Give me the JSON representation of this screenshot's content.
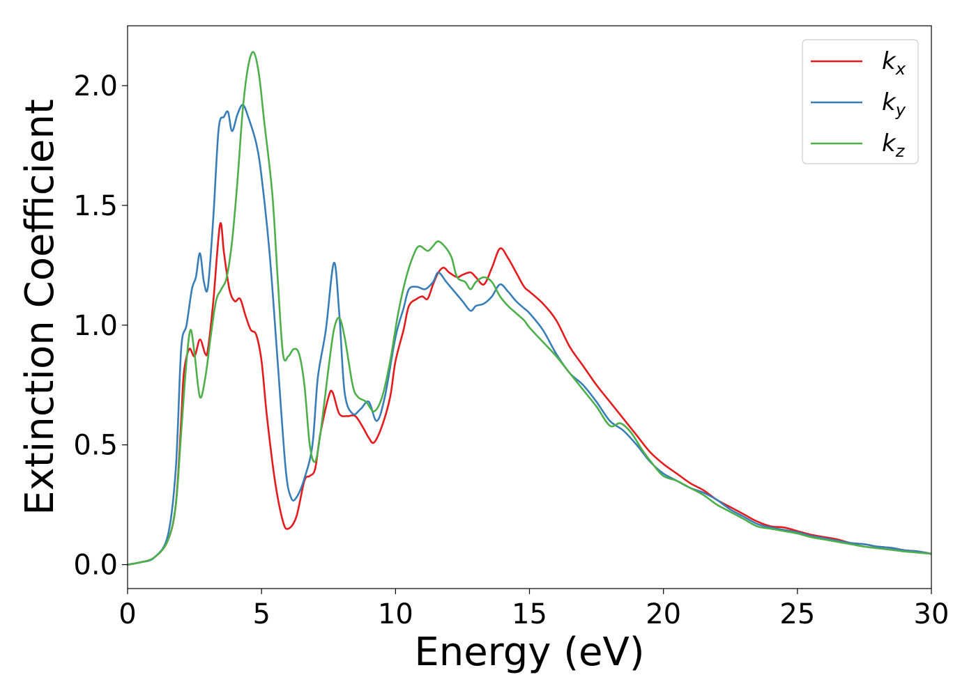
{
  "chart_data": {
    "type": "line",
    "xlabel": "Energy (eV)",
    "ylabel": "Extinction Coefficient",
    "xlim": [
      0,
      30
    ],
    "ylim": [
      -0.1,
      2.25
    ],
    "xticks": [
      0,
      5,
      10,
      15,
      20,
      25,
      30
    ],
    "yticks": [
      0.0,
      0.5,
      1.0,
      1.5,
      2.0
    ],
    "xtick_labels": [
      "0",
      "5",
      "10",
      "15",
      "20",
      "25",
      "30"
    ],
    "ytick_labels": [
      "0.0",
      "0.5",
      "1.0",
      "1.5",
      "2.0"
    ],
    "grid": false,
    "legend_position": "top-right",
    "series": [
      {
        "name": "kx",
        "label_main": "k",
        "label_sub": "x",
        "color": "#e41a1c",
        "points": [
          [
            0,
            0
          ],
          [
            0.5,
            0.01
          ],
          [
            1.0,
            0.03
          ],
          [
            1.5,
            0.1
          ],
          [
            1.8,
            0.25
          ],
          [
            2.0,
            0.6
          ],
          [
            2.1,
            0.8
          ],
          [
            2.3,
            0.9
          ],
          [
            2.5,
            0.87
          ],
          [
            2.7,
            0.94
          ],
          [
            2.9,
            0.88
          ],
          [
            3.0,
            0.9
          ],
          [
            3.2,
            1.1
          ],
          [
            3.45,
            1.42
          ],
          [
            3.6,
            1.3
          ],
          [
            3.8,
            1.15
          ],
          [
            4.0,
            1.1
          ],
          [
            4.2,
            1.11
          ],
          [
            4.4,
            1.04
          ],
          [
            4.6,
            0.98
          ],
          [
            4.8,
            0.96
          ],
          [
            5.0,
            0.85
          ],
          [
            5.2,
            0.62
          ],
          [
            5.5,
            0.35
          ],
          [
            5.8,
            0.18
          ],
          [
            6.0,
            0.15
          ],
          [
            6.3,
            0.2
          ],
          [
            6.6,
            0.35
          ],
          [
            6.8,
            0.37
          ],
          [
            7.0,
            0.4
          ],
          [
            7.2,
            0.55
          ],
          [
            7.5,
            0.7
          ],
          [
            7.65,
            0.72
          ],
          [
            7.9,
            0.63
          ],
          [
            8.2,
            0.62
          ],
          [
            8.5,
            0.62
          ],
          [
            8.8,
            0.57
          ],
          [
            9.0,
            0.53
          ],
          [
            9.2,
            0.51
          ],
          [
            9.5,
            0.58
          ],
          [
            9.8,
            0.7
          ],
          [
            10.0,
            0.85
          ],
          [
            10.3,
            0.98
          ],
          [
            10.5,
            1.08
          ],
          [
            10.8,
            1.11
          ],
          [
            11.0,
            1.12
          ],
          [
            11.2,
            1.11
          ],
          [
            11.4,
            1.17
          ],
          [
            11.6,
            1.22
          ],
          [
            11.8,
            1.24
          ],
          [
            12.0,
            1.22
          ],
          [
            12.3,
            1.2
          ],
          [
            12.5,
            1.21
          ],
          [
            12.8,
            1.22
          ],
          [
            13.0,
            1.2
          ],
          [
            13.3,
            1.17
          ],
          [
            13.6,
            1.24
          ],
          [
            13.9,
            1.32
          ],
          [
            14.2,
            1.28
          ],
          [
            14.5,
            1.22
          ],
          [
            14.8,
            1.16
          ],
          [
            15.0,
            1.14
          ],
          [
            15.5,
            1.09
          ],
          [
            16.0,
            1.02
          ],
          [
            16.5,
            0.91
          ],
          [
            17.0,
            0.83
          ],
          [
            17.5,
            0.75
          ],
          [
            18.0,
            0.68
          ],
          [
            18.5,
            0.61
          ],
          [
            19.0,
            0.54
          ],
          [
            19.5,
            0.47
          ],
          [
            20.0,
            0.42
          ],
          [
            20.5,
            0.38
          ],
          [
            21.0,
            0.34
          ],
          [
            21.5,
            0.31
          ],
          [
            22.0,
            0.27
          ],
          [
            22.5,
            0.24
          ],
          [
            23.0,
            0.21
          ],
          [
            23.5,
            0.18
          ],
          [
            24.0,
            0.16
          ],
          [
            24.5,
            0.155
          ],
          [
            25.0,
            0.14
          ],
          [
            25.5,
            0.125
          ],
          [
            26.0,
            0.115
          ],
          [
            26.5,
            0.105
          ],
          [
            27.0,
            0.09
          ],
          [
            27.5,
            0.085
          ],
          [
            28.0,
            0.075
          ],
          [
            28.5,
            0.07
          ],
          [
            29.0,
            0.06
          ],
          [
            29.5,
            0.055
          ],
          [
            30.0,
            0.045
          ]
        ]
      },
      {
        "name": "ky",
        "label_main": "k",
        "label_sub": "y",
        "color": "#377eb8",
        "points": [
          [
            0,
            0
          ],
          [
            0.5,
            0.01
          ],
          [
            1.0,
            0.03
          ],
          [
            1.5,
            0.12
          ],
          [
            1.8,
            0.4
          ],
          [
            2.0,
            0.9
          ],
          [
            2.2,
            1.0
          ],
          [
            2.4,
            1.15
          ],
          [
            2.55,
            1.2
          ],
          [
            2.7,
            1.3
          ],
          [
            2.85,
            1.18
          ],
          [
            3.0,
            1.16
          ],
          [
            3.2,
            1.45
          ],
          [
            3.4,
            1.82
          ],
          [
            3.6,
            1.87
          ],
          [
            3.75,
            1.89
          ],
          [
            3.9,
            1.81
          ],
          [
            4.1,
            1.88
          ],
          [
            4.3,
            1.92
          ],
          [
            4.5,
            1.87
          ],
          [
            4.8,
            1.76
          ],
          [
            5.0,
            1.62
          ],
          [
            5.3,
            1.3
          ],
          [
            5.6,
            0.85
          ],
          [
            5.9,
            0.4
          ],
          [
            6.1,
            0.28
          ],
          [
            6.3,
            0.28
          ],
          [
            6.6,
            0.36
          ],
          [
            6.9,
            0.5
          ],
          [
            7.1,
            0.78
          ],
          [
            7.4,
            0.98
          ],
          [
            7.7,
            1.26
          ],
          [
            7.9,
            1.05
          ],
          [
            8.1,
            0.72
          ],
          [
            8.4,
            0.63
          ],
          [
            8.7,
            0.65
          ],
          [
            9.0,
            0.68
          ],
          [
            9.3,
            0.6
          ],
          [
            9.6,
            0.7
          ],
          [
            10.0,
            0.95
          ],
          [
            10.3,
            1.07
          ],
          [
            10.5,
            1.15
          ],
          [
            10.8,
            1.16
          ],
          [
            11.1,
            1.15
          ],
          [
            11.4,
            1.18
          ],
          [
            11.6,
            1.22
          ],
          [
            11.9,
            1.18
          ],
          [
            12.2,
            1.14
          ],
          [
            12.5,
            1.1
          ],
          [
            12.8,
            1.06
          ],
          [
            13.0,
            1.08
          ],
          [
            13.3,
            1.09
          ],
          [
            13.6,
            1.12
          ],
          [
            13.9,
            1.17
          ],
          [
            14.2,
            1.14
          ],
          [
            14.5,
            1.1
          ],
          [
            14.8,
            1.07
          ],
          [
            15.0,
            1.05
          ],
          [
            15.5,
            0.98
          ],
          [
            16.0,
            0.88
          ],
          [
            16.5,
            0.8
          ],
          [
            17.0,
            0.75
          ],
          [
            17.5,
            0.68
          ],
          [
            18.0,
            0.6
          ],
          [
            18.5,
            0.56
          ],
          [
            19.0,
            0.5
          ],
          [
            19.5,
            0.43
          ],
          [
            20.0,
            0.38
          ],
          [
            20.5,
            0.35
          ],
          [
            21.0,
            0.32
          ],
          [
            21.5,
            0.3
          ],
          [
            22.0,
            0.27
          ],
          [
            22.5,
            0.23
          ],
          [
            23.0,
            0.2
          ],
          [
            23.5,
            0.17
          ],
          [
            24.0,
            0.155
          ],
          [
            24.5,
            0.145
          ],
          [
            25.0,
            0.135
          ],
          [
            25.5,
            0.12
          ],
          [
            26.0,
            0.11
          ],
          [
            26.5,
            0.1
          ],
          [
            27.0,
            0.09
          ],
          [
            27.5,
            0.085
          ],
          [
            28.0,
            0.075
          ],
          [
            28.5,
            0.07
          ],
          [
            29.0,
            0.06
          ],
          [
            29.5,
            0.055
          ],
          [
            30.0,
            0.045
          ]
        ]
      },
      {
        "name": "kz",
        "label_main": "k",
        "label_sub": "z",
        "color": "#4daf4a",
        "points": [
          [
            0,
            0
          ],
          [
            0.5,
            0.01
          ],
          [
            1.0,
            0.03
          ],
          [
            1.5,
            0.1
          ],
          [
            1.8,
            0.25
          ],
          [
            2.0,
            0.55
          ],
          [
            2.2,
            0.85
          ],
          [
            2.35,
            0.98
          ],
          [
            2.5,
            0.88
          ],
          [
            2.7,
            0.7
          ],
          [
            2.9,
            0.78
          ],
          [
            3.1,
            0.95
          ],
          [
            3.3,
            1.1
          ],
          [
            3.5,
            1.15
          ],
          [
            3.7,
            1.2
          ],
          [
            3.9,
            1.35
          ],
          [
            4.1,
            1.6
          ],
          [
            4.3,
            1.9
          ],
          [
            4.5,
            2.08
          ],
          [
            4.7,
            2.14
          ],
          [
            4.9,
            2.05
          ],
          [
            5.1,
            1.85
          ],
          [
            5.4,
            1.55
          ],
          [
            5.6,
            1.2
          ],
          [
            5.8,
            0.88
          ],
          [
            6.0,
            0.87
          ],
          [
            6.2,
            0.9
          ],
          [
            6.4,
            0.88
          ],
          [
            6.6,
            0.75
          ],
          [
            6.8,
            0.5
          ],
          [
            7.0,
            0.43
          ],
          [
            7.2,
            0.55
          ],
          [
            7.5,
            0.82
          ],
          [
            7.7,
            0.98
          ],
          [
            7.9,
            1.03
          ],
          [
            8.1,
            0.95
          ],
          [
            8.4,
            0.75
          ],
          [
            8.6,
            0.7
          ],
          [
            8.9,
            0.68
          ],
          [
            9.2,
            0.64
          ],
          [
            9.5,
            0.7
          ],
          [
            9.8,
            0.85
          ],
          [
            10.1,
            1.05
          ],
          [
            10.4,
            1.2
          ],
          [
            10.7,
            1.3
          ],
          [
            10.9,
            1.33
          ],
          [
            11.2,
            1.31
          ],
          [
            11.4,
            1.33
          ],
          [
            11.6,
            1.35
          ],
          [
            11.9,
            1.32
          ],
          [
            12.1,
            1.28
          ],
          [
            12.3,
            1.2
          ],
          [
            12.6,
            1.18
          ],
          [
            12.8,
            1.15
          ],
          [
            13.0,
            1.18
          ],
          [
            13.3,
            1.2
          ],
          [
            13.6,
            1.18
          ],
          [
            13.9,
            1.12
          ],
          [
            14.2,
            1.08
          ],
          [
            14.5,
            1.05
          ],
          [
            14.8,
            1.02
          ],
          [
            15.0,
            0.99
          ],
          [
            15.5,
            0.93
          ],
          [
            16.0,
            0.87
          ],
          [
            16.5,
            0.8
          ],
          [
            17.0,
            0.73
          ],
          [
            17.5,
            0.66
          ],
          [
            18.0,
            0.58
          ],
          [
            18.4,
            0.59
          ],
          [
            18.8,
            0.55
          ],
          [
            19.2,
            0.48
          ],
          [
            19.6,
            0.42
          ],
          [
            20.0,
            0.37
          ],
          [
            20.5,
            0.35
          ],
          [
            21.0,
            0.32
          ],
          [
            21.5,
            0.29
          ],
          [
            22.0,
            0.25
          ],
          [
            22.5,
            0.22
          ],
          [
            23.0,
            0.19
          ],
          [
            23.5,
            0.16
          ],
          [
            24.0,
            0.15
          ],
          [
            24.5,
            0.14
          ],
          [
            25.0,
            0.13
          ],
          [
            25.5,
            0.115
          ],
          [
            26.0,
            0.105
          ],
          [
            26.5,
            0.095
          ],
          [
            27.0,
            0.085
          ],
          [
            27.5,
            0.075
          ],
          [
            28.0,
            0.068
          ],
          [
            28.5,
            0.062
          ],
          [
            29.0,
            0.055
          ],
          [
            29.5,
            0.05
          ],
          [
            30.0,
            0.045
          ]
        ]
      }
    ]
  }
}
